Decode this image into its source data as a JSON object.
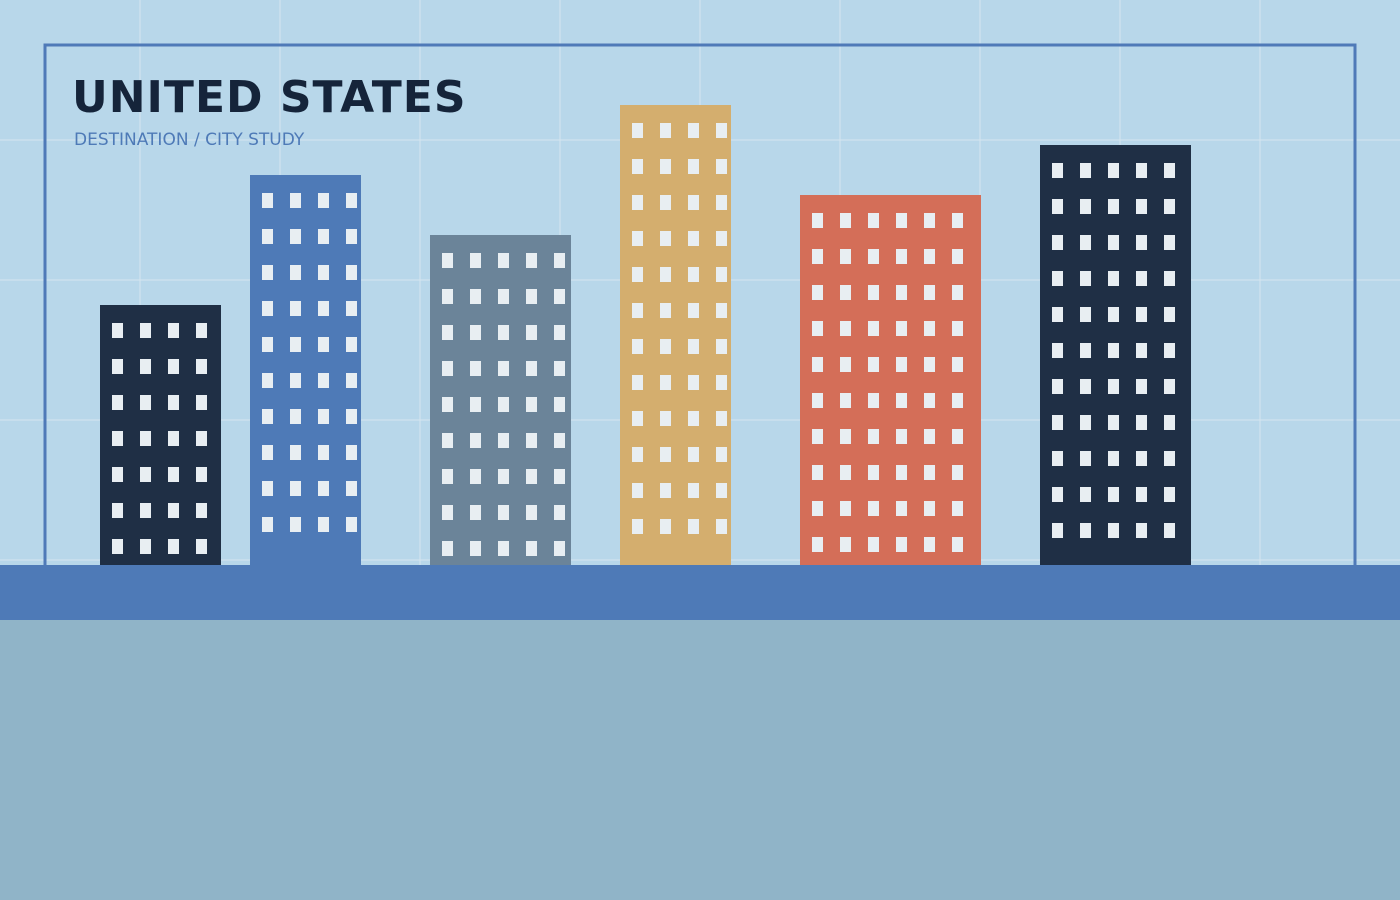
{
  "header": {
    "title": "UNITED STATES",
    "subtitle": "DESTINATION / CITY STUDY"
  }
}
